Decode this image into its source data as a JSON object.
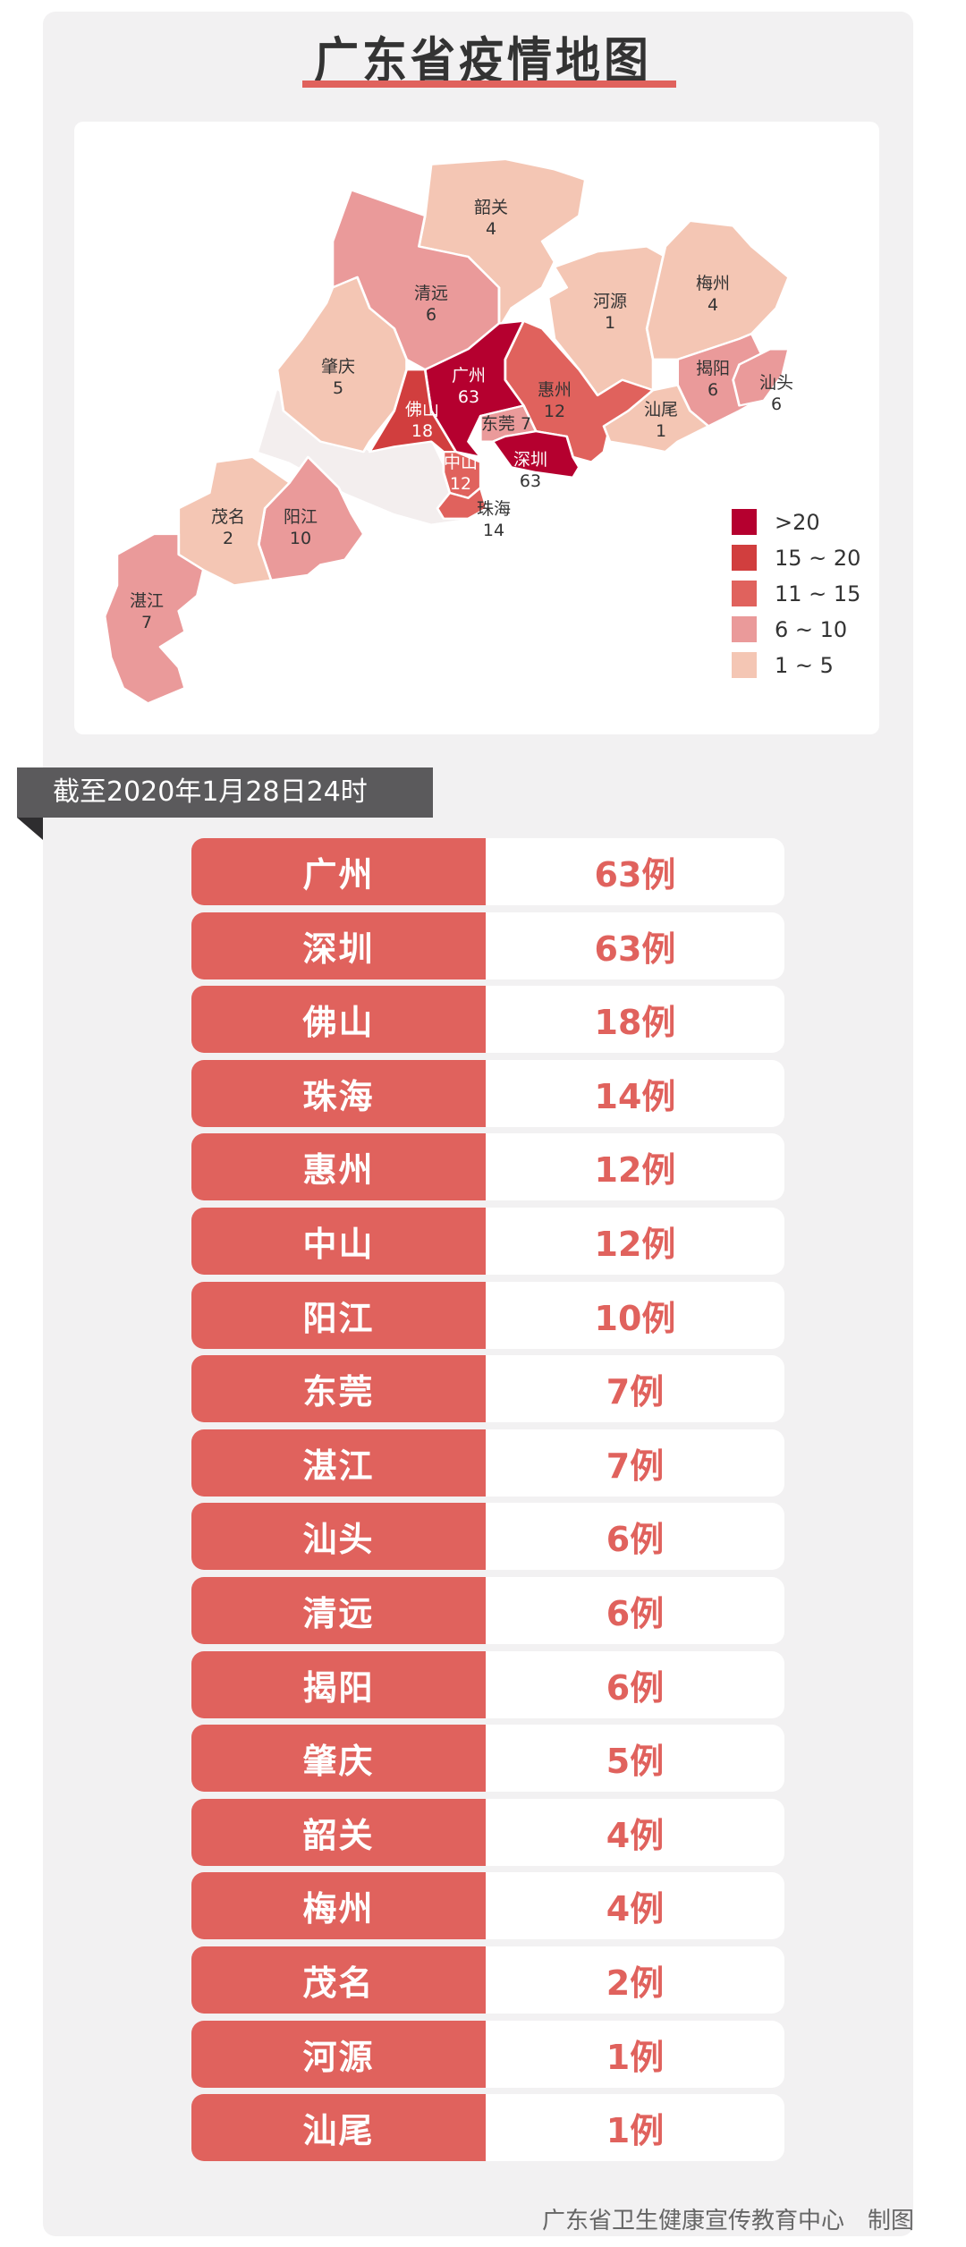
{
  "title": "广东省疫情地图",
  "map": {
    "labels": [
      {
        "name": "韶关",
        "value": "4"
      },
      {
        "name": "清远",
        "value": "6"
      },
      {
        "name": "肇庆",
        "value": "5"
      },
      {
        "name": "广州",
        "value": "63"
      },
      {
        "name": "佛山",
        "value": "18"
      },
      {
        "name": "东莞",
        "value": "7"
      },
      {
        "name": "惠州",
        "value": "12"
      },
      {
        "name": "深圳",
        "value": "63"
      },
      {
        "name": "中山",
        "value": "12"
      },
      {
        "name": "珠海",
        "value": "14"
      },
      {
        "name": "河源",
        "value": "1"
      },
      {
        "name": "梅州",
        "value": "4"
      },
      {
        "name": "揭阳",
        "value": "6"
      },
      {
        "name": "汕头",
        "value": "6"
      },
      {
        "name": "汕尾",
        "value": "1"
      },
      {
        "name": "茂名",
        "value": "2"
      },
      {
        "name": "阳江",
        "value": "10"
      },
      {
        "name": "湛江",
        "value": "7"
      }
    ],
    "legend": [
      {
        "label": ">20",
        "color": "#b5002f"
      },
      {
        "label": "15 ~ 20",
        "color": "#d13e3e"
      },
      {
        "label": "11 ~ 15",
        "color": "#e0625d"
      },
      {
        "label": "6 ~ 10",
        "color": "#ea9a9a"
      },
      {
        "label": "1 ~ 5",
        "color": "#f4c6b4"
      }
    ]
  },
  "as_of": "截至2020年1月28日24时",
  "table": [
    {
      "city": "广州",
      "count": "63例"
    },
    {
      "city": "深圳",
      "count": "63例"
    },
    {
      "city": "佛山",
      "count": "18例"
    },
    {
      "city": "珠海",
      "count": "14例"
    },
    {
      "city": "惠州",
      "count": "12例"
    },
    {
      "city": "中山",
      "count": "12例"
    },
    {
      "city": "阳江",
      "count": "10例"
    },
    {
      "city": "东莞",
      "count": "7例"
    },
    {
      "city": "湛江",
      "count": "7例"
    },
    {
      "city": "汕头",
      "count": "6例"
    },
    {
      "city": "清远",
      "count": "6例"
    },
    {
      "city": "揭阳",
      "count": "6例"
    },
    {
      "city": "肇庆",
      "count": "5例"
    },
    {
      "city": "韶关",
      "count": "4例"
    },
    {
      "city": "梅州",
      "count": "4例"
    },
    {
      "city": "茂名",
      "count": "2例"
    },
    {
      "city": "河源",
      "count": "1例"
    },
    {
      "city": "汕尾",
      "count": "1例"
    }
  ],
  "footer": "广东省卫生健康宣传教育中心　制图",
  "colors": {
    "accent": "#e0625d",
    "banner": "#5b5a5c",
    "card_bg": "#f2f1f2"
  }
}
